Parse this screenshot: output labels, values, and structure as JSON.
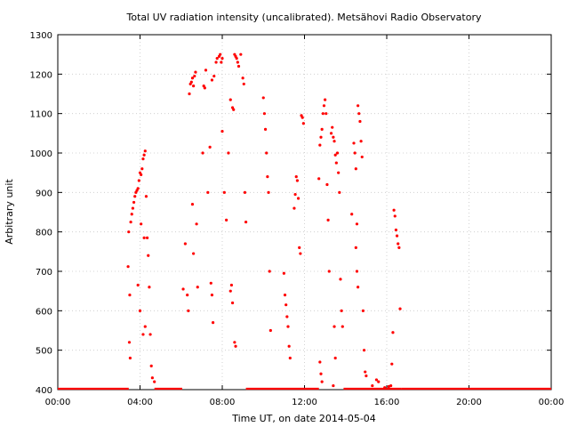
{
  "chart_data": {
    "type": "scatter",
    "title": "Total UV radiation intensity (uncalibrated). Metsähovi Radio Observatory",
    "xlabel": "Time UT, on date 2014-05-04",
    "ylabel": "Arbitrary unit",
    "xlim": [
      0,
      24
    ],
    "ylim": [
      400,
      1300
    ],
    "x_unit": "hours UT",
    "x_ticks": [
      0,
      4,
      8,
      12,
      16,
      20,
      24
    ],
    "x_tick_labels": [
      "00:00",
      "04:00",
      "08:00",
      "12:00",
      "16:00",
      "20:00",
      "00:00"
    ],
    "y_ticks": [
      400,
      500,
      600,
      700,
      800,
      900,
      1000,
      1100,
      1200,
      1300
    ],
    "y_tick_labels": [
      "400",
      "500",
      "600",
      "700",
      "800",
      "900",
      "1000",
      "1100",
      "1200",
      "1300"
    ],
    "grid": true,
    "marker_color": "#ff0000",
    "series": [
      {
        "points": [
          [
            3.42,
            712
          ],
          [
            3.45,
            800
          ],
          [
            3.5,
            640
          ],
          [
            3.55,
            825
          ],
          [
            3.6,
            845
          ],
          [
            3.65,
            860
          ],
          [
            3.7,
            875
          ],
          [
            3.75,
            890
          ],
          [
            3.8,
            900
          ],
          [
            3.85,
            905
          ],
          [
            3.9,
            910
          ],
          [
            3.95,
            930
          ],
          [
            4.0,
            950
          ],
          [
            4.05,
            945
          ],
          [
            4.1,
            960
          ],
          [
            4.15,
            985
          ],
          [
            4.2,
            995
          ],
          [
            4.25,
            1005
          ],
          [
            4.3,
            890
          ],
          [
            4.35,
            785
          ],
          [
            4.4,
            740
          ],
          [
            4.45,
            660
          ],
          [
            4.5,
            540
          ],
          [
            4.55,
            460
          ],
          [
            4.6,
            430
          ],
          [
            4.7,
            420
          ],
          [
            3.48,
            520
          ],
          [
            3.52,
            480
          ],
          [
            3.9,
            665
          ],
          [
            4.0,
            600
          ],
          [
            4.05,
            820
          ],
          [
            4.15,
            540
          ],
          [
            4.2,
            785
          ],
          [
            4.25,
            560
          ],
          [
            6.1,
            655
          ],
          [
            6.2,
            770
          ],
          [
            6.3,
            640
          ],
          [
            6.35,
            600
          ],
          [
            6.4,
            1150
          ],
          [
            6.45,
            1175
          ],
          [
            6.5,
            1180
          ],
          [
            6.55,
            1190
          ],
          [
            6.6,
            1170
          ],
          [
            6.65,
            1195
          ],
          [
            6.7,
            1205
          ],
          [
            6.75,
            820
          ],
          [
            6.8,
            660
          ],
          [
            6.55,
            870
          ],
          [
            6.6,
            745
          ],
          [
            7.05,
            1000
          ],
          [
            7.1,
            1170
          ],
          [
            7.15,
            1165
          ],
          [
            7.2,
            1210
          ],
          [
            7.3,
            900
          ],
          [
            7.4,
            1015
          ],
          [
            7.5,
            1185
          ],
          [
            7.6,
            1195
          ],
          [
            7.7,
            1230
          ],
          [
            7.75,
            1240
          ],
          [
            7.85,
            1245
          ],
          [
            7.9,
            1250
          ],
          [
            7.95,
            1230
          ],
          [
            8.0,
            1240
          ],
          [
            7.45,
            670
          ],
          [
            7.5,
            640
          ],
          [
            7.55,
            570
          ],
          [
            8.0,
            1055
          ],
          [
            8.1,
            900
          ],
          [
            8.2,
            830
          ],
          [
            8.3,
            1000
          ],
          [
            8.4,
            1135
          ],
          [
            8.5,
            1115
          ],
          [
            8.55,
            1110
          ],
          [
            8.6,
            1250
          ],
          [
            8.65,
            1245
          ],
          [
            8.7,
            1240
          ],
          [
            8.75,
            1230
          ],
          [
            8.8,
            1220
          ],
          [
            8.9,
            1250
          ],
          [
            9.0,
            1190
          ],
          [
            9.05,
            1175
          ],
          [
            9.1,
            900
          ],
          [
            9.15,
            825
          ],
          [
            8.4,
            650
          ],
          [
            8.45,
            665
          ],
          [
            8.5,
            620
          ],
          [
            8.6,
            520
          ],
          [
            8.65,
            510
          ],
          [
            10.0,
            1140
          ],
          [
            10.05,
            1100
          ],
          [
            10.1,
            1060
          ],
          [
            10.15,
            1000
          ],
          [
            10.2,
            940
          ],
          [
            10.25,
            900
          ],
          [
            10.3,
            700
          ],
          [
            10.35,
            550
          ],
          [
            11.0,
            695
          ],
          [
            11.05,
            640
          ],
          [
            11.1,
            615
          ],
          [
            11.15,
            585
          ],
          [
            11.2,
            560
          ],
          [
            11.25,
            510
          ],
          [
            11.3,
            480
          ],
          [
            11.5,
            860
          ],
          [
            11.55,
            895
          ],
          [
            11.6,
            940
          ],
          [
            11.65,
            930
          ],
          [
            11.7,
            885
          ],
          [
            11.75,
            760
          ],
          [
            11.8,
            745
          ],
          [
            11.85,
            1095
          ],
          [
            11.9,
            1090
          ],
          [
            11.95,
            1075
          ],
          [
            12.7,
            935
          ],
          [
            12.75,
            1020
          ],
          [
            12.8,
            1040
          ],
          [
            12.85,
            1060
          ],
          [
            12.9,
            1100
          ],
          [
            12.95,
            1120
          ],
          [
            13.0,
            1135
          ],
          [
            13.05,
            1100
          ],
          [
            13.1,
            920
          ],
          [
            13.15,
            830
          ],
          [
            13.2,
            700
          ],
          [
            13.3,
            1050
          ],
          [
            13.35,
            1065
          ],
          [
            13.4,
            1040
          ],
          [
            13.45,
            1030
          ],
          [
            13.5,
            995
          ],
          [
            13.55,
            975
          ],
          [
            13.6,
            1000
          ],
          [
            13.65,
            950
          ],
          [
            13.7,
            900
          ],
          [
            13.75,
            680
          ],
          [
            13.8,
            600
          ],
          [
            13.85,
            560
          ],
          [
            12.75,
            470
          ],
          [
            12.8,
            440
          ],
          [
            12.85,
            420
          ],
          [
            13.4,
            410
          ],
          [
            13.45,
            560
          ],
          [
            13.5,
            480
          ],
          [
            14.3,
            845
          ],
          [
            14.4,
            1025
          ],
          [
            14.45,
            1000
          ],
          [
            14.5,
            960
          ],
          [
            14.55,
            820
          ],
          [
            14.6,
            1120
          ],
          [
            14.65,
            1100
          ],
          [
            14.7,
            1080
          ],
          [
            14.75,
            1030
          ],
          [
            14.8,
            990
          ],
          [
            14.85,
            600
          ],
          [
            14.9,
            500
          ],
          [
            14.95,
            445
          ],
          [
            15.0,
            435
          ],
          [
            14.5,
            760
          ],
          [
            14.55,
            700
          ],
          [
            14.6,
            660
          ],
          [
            16.35,
            855
          ],
          [
            16.4,
            840
          ],
          [
            16.45,
            805
          ],
          [
            16.5,
            790
          ],
          [
            16.55,
            770
          ],
          [
            16.6,
            760
          ],
          [
            16.65,
            605
          ],
          [
            16.3,
            545
          ],
          [
            16.25,
            465
          ],
          [
            15.5,
            425
          ],
          [
            15.6,
            420
          ],
          [
            15.3,
            410
          ],
          [
            15.9,
            405
          ],
          [
            16.1,
            408
          ],
          [
            16.2,
            410
          ]
        ]
      }
    ],
    "baseline": {
      "y": 400,
      "ranges": [
        [
          0,
          3.45
        ],
        [
          4.7,
          6.05
        ],
        [
          9.15,
          12.7
        ],
        [
          13.9,
          16.7
        ],
        [
          16.7,
          24
        ]
      ]
    }
  }
}
